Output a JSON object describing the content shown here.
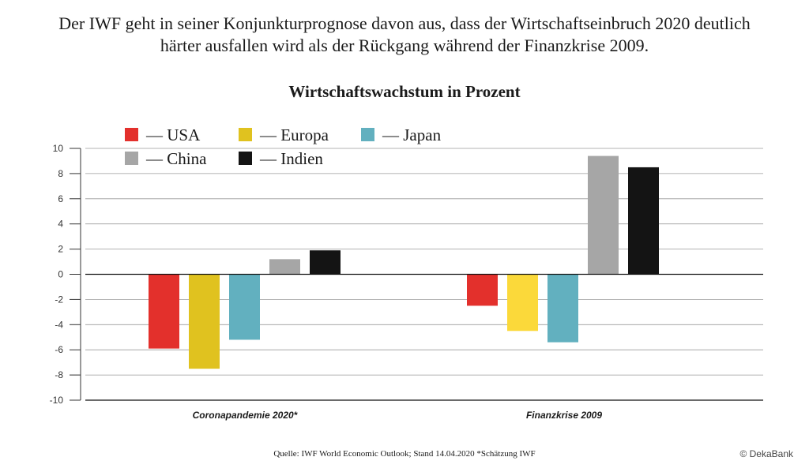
{
  "intro": {
    "line1": "Der IWF geht in seiner Konjunkturprognose davon aus, dass der Wirtschaftseinbruch 2020 deutlich",
    "line2": "härter ausfallen wird als der Rückgang während der Finanzkrise 2009."
  },
  "chart_data": {
    "type": "bar",
    "title": "Wirtschaftswachstum in Prozent",
    "xlabel": "",
    "ylabel": "",
    "categories": [
      "Coronapandemie 2020*",
      "Finanzkrise 2009"
    ],
    "series": [
      {
        "name": "USA",
        "color": "#e3302c",
        "values": [
          -5.9,
          -2.5
        ]
      },
      {
        "name": "Europa",
        "color": "#e0c21f",
        "values": [
          -7.5,
          -4.5
        ]
      },
      {
        "name": "Japan",
        "color": "#62b0bf",
        "values": [
          -5.2,
          -5.4
        ]
      },
      {
        "name": "China",
        "color": "#a6a6a6",
        "values": [
          1.2,
          9.4
        ]
      },
      {
        "name": "Indien",
        "color": "#141414",
        "values": [
          1.9,
          8.5
        ]
      }
    ],
    "series_colors_alt": {
      "Europa_2009": "#fbd93a"
    },
    "ylim": [
      -10,
      10
    ],
    "yticks": [
      10,
      8,
      6,
      4,
      2,
      0,
      -2,
      -4,
      -6,
      -8,
      -10
    ],
    "grid": true,
    "legend_position": "top-left"
  },
  "legend_dash": "—",
  "source": "Quelle: IWF World Economic Outlook; Stand 14.04.2020 *Schätzung IWF",
  "copyright": "© DekaBank"
}
